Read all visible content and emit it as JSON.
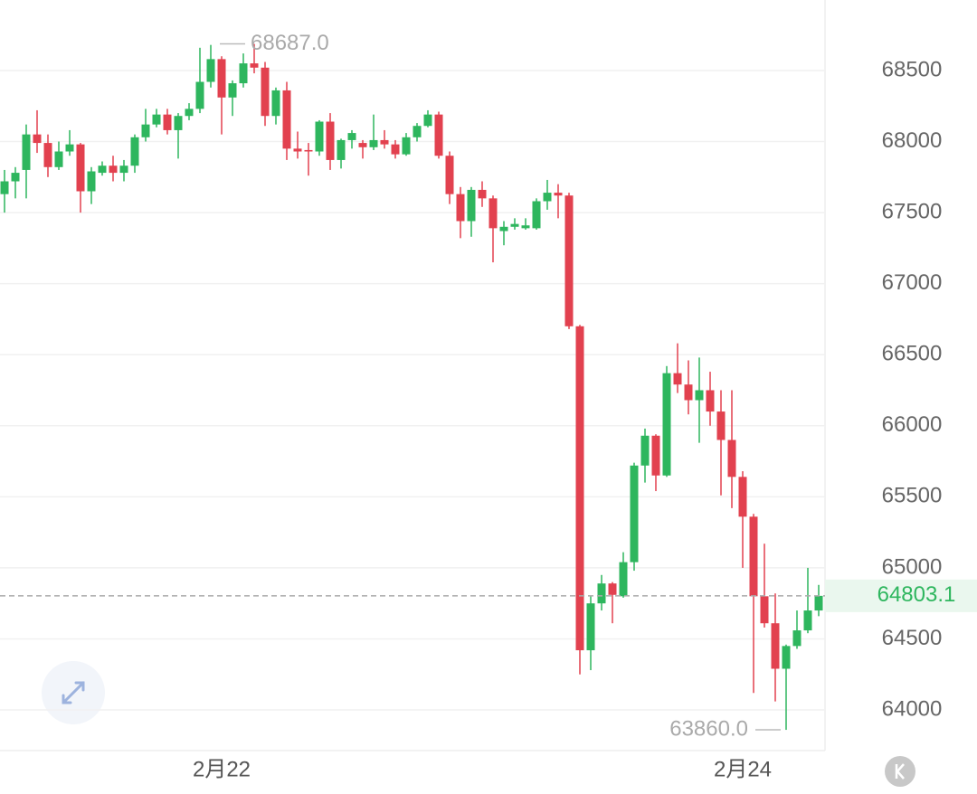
{
  "chart_data": {
    "type": "candlestick",
    "categories": [
      null,
      null,
      null,
      null,
      null,
      null,
      null,
      null,
      null,
      null,
      null,
      null,
      null,
      null,
      null,
      null,
      null,
      null,
      null,
      null,
      "2月22",
      null,
      null,
      null,
      null,
      null,
      null,
      null,
      null,
      null,
      null,
      null,
      null,
      null,
      null,
      null,
      null,
      null,
      null,
      null,
      null,
      null,
      null,
      null,
      null,
      null,
      null,
      null,
      null,
      null,
      null,
      null,
      null,
      null,
      null,
      null,
      null,
      null,
      null,
      null,
      null,
      null,
      null,
      null,
      null,
      null,
      null,
      null,
      "2月24",
      null,
      null,
      null,
      null,
      null,
      null,
      null
    ],
    "open": [
      67630,
      67720,
      67800,
      68050,
      67990,
      67820,
      67930,
      67980,
      67650,
      67780,
      67830,
      67780,
      67830,
      68030,
      68120,
      68190,
      68080,
      68180,
      68230,
      68420,
      68580,
      68310,
      68410,
      68550,
      68520,
      68180,
      68360,
      67950,
      67940,
      67930,
      68140,
      67870,
      68010,
      67990,
      67960,
      68010,
      67980,
      67910,
      68030,
      68110,
      68190,
      67900,
      67630,
      67440,
      67660,
      67600,
      67370,
      67400,
      67390,
      67390,
      67580,
      67640,
      67620,
      66700,
      64420,
      64750,
      64890,
      64800,
      65040,
      65720,
      65930,
      65650,
      66370,
      66290,
      66180,
      66250,
      66100,
      65900,
      65640,
      65360,
      64800,
      64610,
      64290,
      64450,
      64560,
      64700
    ],
    "high": [
      67800,
      67820,
      68120,
      68220,
      68050,
      68000,
      68080,
      67990,
      67820,
      67860,
      67900,
      67870,
      68050,
      68230,
      68230,
      68230,
      68200,
      68270,
      68660,
      68680,
      68600,
      68430,
      68620,
      68687,
      68560,
      68380,
      68420,
      68070,
      67990,
      68150,
      68200,
      68020,
      68080,
      68010,
      68190,
      68080,
      68010,
      68060,
      68130,
      68220,
      68210,
      67930,
      67680,
      67680,
      67720,
      67620,
      67440,
      67460,
      67460,
      67600,
      67730,
      67700,
      67640,
      66710,
      64800,
      64950,
      64900,
      65110,
      65740,
      65980,
      65940,
      66420,
      66580,
      66460,
      66480,
      66380,
      66250,
      66250,
      65680,
      65380,
      65170,
      64820,
      64460,
      64700,
      65000,
      64880
    ],
    "low": [
      67500,
      67600,
      67600,
      67920,
      67750,
      67800,
      67900,
      67500,
      67560,
      67760,
      67720,
      67720,
      67780,
      68000,
      68100,
      68050,
      67880,
      68150,
      68200,
      68380,
      68050,
      68180,
      68380,
      68480,
      68110,
      68120,
      67870,
      67880,
      67760,
      67900,
      67800,
      67810,
      67950,
      67880,
      67940,
      67950,
      67880,
      67900,
      68000,
      68100,
      67880,
      67560,
      67320,
      67330,
      67540,
      67150,
      67270,
      67380,
      67380,
      67380,
      67520,
      67460,
      66680,
      64250,
      64280,
      64700,
      64610,
      64790,
      64980,
      65600,
      65540,
      65640,
      66230,
      66080,
      65880,
      66000,
      65510,
      65420,
      65000,
      64120,
      64580,
      64060,
      63860,
      64430,
      64540,
      64660
    ],
    "close": [
      67720,
      67780,
      68050,
      67990,
      67820,
      67930,
      67980,
      67650,
      67790,
      67830,
      67780,
      67830,
      68030,
      68120,
      68190,
      68080,
      68180,
      68230,
      68420,
      68580,
      68310,
      68410,
      68550,
      68520,
      68180,
      68360,
      67950,
      67930,
      67930,
      68140,
      67870,
      68010,
      68060,
      67960,
      68010,
      67980,
      67910,
      68030,
      68110,
      68190,
      67900,
      67630,
      67440,
      67660,
      67600,
      67390,
      67400,
      67420,
      67410,
      67580,
      67640,
      67620,
      66700,
      64420,
      64750,
      64890,
      64810,
      65040,
      65720,
      65930,
      65650,
      66370,
      66290,
      66180,
      66250,
      66100,
      65900,
      65640,
      65360,
      64800,
      64610,
      64290,
      64450,
      64560,
      64700,
      64803.1
    ],
    "up_color": "#2eb65e",
    "down_color": "#e2414f",
    "ylim": [
      63714,
      68996
    ],
    "yticks": [
      64000,
      64500,
      65000,
      65500,
      66000,
      66500,
      67000,
      67500,
      68000,
      68500
    ],
    "grid": true,
    "annotations": [
      {
        "value": 68687,
        "label": "68687.0"
      },
      {
        "value": 63860,
        "label": "63860.0"
      }
    ]
  }
}
